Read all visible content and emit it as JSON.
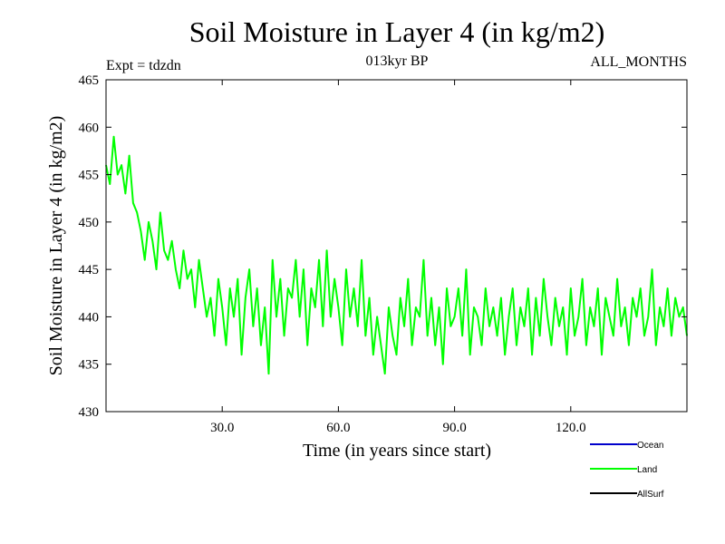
{
  "chart_data": {
    "type": "line",
    "title": "Soil Moisture in Layer 4 (in kg/m2)",
    "subtitle": "013kyr BP",
    "experiment": "Expt = tdzdn",
    "season": "ALL_MONTHS",
    "xlabel": "Time (in years since start)",
    "ylabel": "Soil Moisture in Layer 4 (in kg/m2)",
    "xlim": [
      0,
      150
    ],
    "ylim": [
      430,
      465
    ],
    "x_ticks": [
      30,
      60,
      90,
      120
    ],
    "x_tick_labels": [
      "30.0",
      "60.0",
      "90.0",
      "120.0"
    ],
    "y_ticks": [
      430,
      435,
      440,
      445,
      450,
      455,
      460,
      465
    ],
    "y_tick_labels": [
      "430",
      "435",
      "440",
      "445",
      "450",
      "455",
      "460",
      "465"
    ],
    "grid": false,
    "legend_position": "bottom-right",
    "series": [
      {
        "name": "Ocean",
        "color": "#0000cc",
        "x": [],
        "y": []
      },
      {
        "name": "Land",
        "color": "#00ff00",
        "x": [
          0,
          1,
          2,
          3,
          4,
          5,
          6,
          7,
          8,
          9,
          10,
          11,
          12,
          13,
          14,
          15,
          16,
          17,
          18,
          19,
          20,
          21,
          22,
          23,
          24,
          25,
          26,
          27,
          28,
          29,
          30,
          31,
          32,
          33,
          34,
          35,
          36,
          37,
          38,
          39,
          40,
          41,
          42,
          43,
          44,
          45,
          46,
          47,
          48,
          49,
          50,
          51,
          52,
          53,
          54,
          55,
          56,
          57,
          58,
          59,
          60,
          61,
          62,
          63,
          64,
          65,
          66,
          67,
          68,
          69,
          70,
          71,
          72,
          73,
          74,
          75,
          76,
          77,
          78,
          79,
          80,
          81,
          82,
          83,
          84,
          85,
          86,
          87,
          88,
          89,
          90,
          91,
          92,
          93,
          94,
          95,
          96,
          97,
          98,
          99,
          100,
          101,
          102,
          103,
          104,
          105,
          106,
          107,
          108,
          109,
          110,
          111,
          112,
          113,
          114,
          115,
          116,
          117,
          118,
          119,
          120,
          121,
          122,
          123,
          124,
          125,
          126,
          127,
          128,
          129,
          130,
          131,
          132,
          133,
          134,
          135,
          136,
          137,
          138,
          139,
          140,
          141,
          142,
          143,
          144,
          145,
          146,
          147,
          148,
          149,
          150
        ],
        "y": [
          456,
          454,
          459,
          455,
          456,
          453,
          457,
          452,
          451,
          449,
          446,
          450,
          448,
          445,
          451,
          447,
          446,
          448,
          445,
          443,
          447,
          444,
          445,
          441,
          446,
          443,
          440,
          442,
          438,
          444,
          441,
          437,
          443,
          440,
          444,
          436,
          442,
          445,
          439,
          443,
          437,
          441,
          434,
          446,
          440,
          444,
          438,
          443,
          442,
          446,
          440,
          445,
          437,
          443,
          441,
          446,
          439,
          447,
          440,
          444,
          441,
          437,
          445,
          440,
          443,
          439,
          446,
          438,
          442,
          436,
          440,
          437,
          434,
          441,
          438,
          436,
          442,
          439,
          444,
          437,
          441,
          440,
          446,
          438,
          442,
          437,
          441,
          435,
          443,
          439,
          440,
          443,
          438,
          445,
          436,
          441,
          440,
          437,
          443,
          439,
          441,
          438,
          442,
          436,
          440,
          443,
          437,
          441,
          439,
          443,
          436,
          442,
          438,
          444,
          440,
          437,
          442,
          439,
          441,
          436,
          443,
          438,
          440,
          444,
          437,
          441,
          439,
          443,
          436,
          442,
          440,
          438,
          444,
          439,
          441,
          437,
          442,
          440,
          443,
          438,
          440,
          445,
          437,
          441,
          439,
          443,
          438,
          442,
          440,
          441,
          438
        ]
      },
      {
        "name": "AllSurf",
        "color": "#000000",
        "x": [],
        "y": []
      }
    ]
  }
}
